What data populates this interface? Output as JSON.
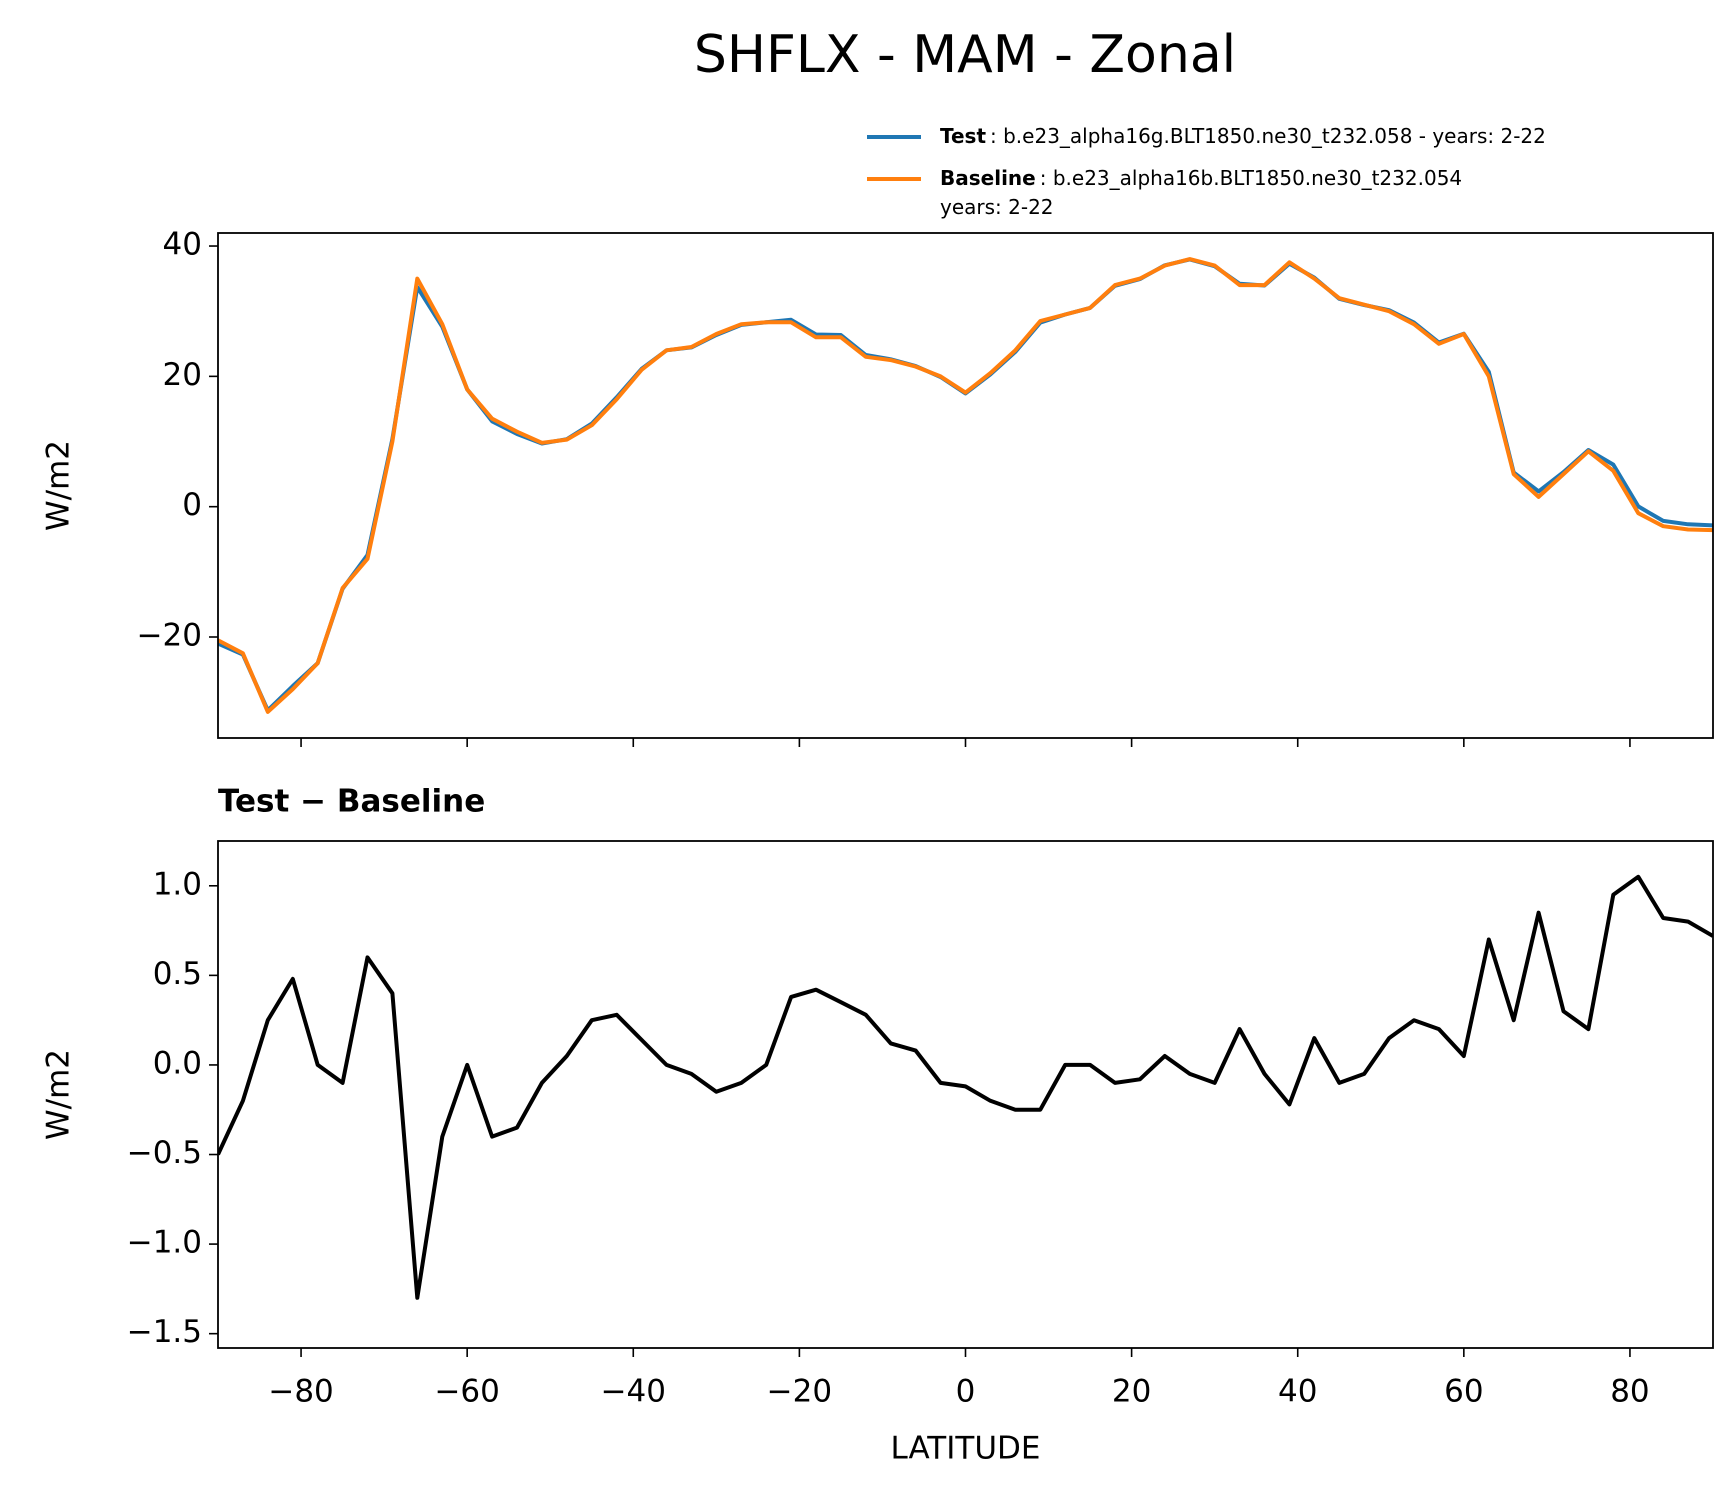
{
  "chart_data": [
    {
      "type": "line",
      "title": "SHFLX - MAM - Zonal",
      "ylabel": "W/m2",
      "x": [
        -90,
        -87,
        -84,
        -81,
        -78,
        -75,
        -72,
        -69,
        -66,
        -63,
        -60,
        -57,
        -54,
        -51,
        -48,
        -45,
        -42,
        -39,
        -36,
        -33,
        -30,
        -27,
        -24,
        -21,
        -18,
        -15,
        -12,
        -9,
        -6,
        -3,
        0,
        3,
        6,
        9,
        12,
        15,
        18,
        21,
        24,
        27,
        30,
        33,
        36,
        39,
        42,
        45,
        48,
        51,
        54,
        57,
        60,
        63,
        66,
        69,
        72,
        75,
        78,
        81,
        84,
        87,
        90
      ],
      "series": [
        {
          "name": "Test",
          "description": [
            ": b.e23_alpha16g.BLT1850.ne30_t232.058 - years: 2-22"
          ],
          "color": "#1f77b4",
          "values": [
            -21,
            -22.7,
            -31.25,
            -27.52,
            -24,
            -12.6,
            -7.4,
            10.4,
            33.7,
            27.6,
            18,
            13.1,
            11.15,
            9.7,
            10.35,
            12.75,
            16.78,
            21.14,
            24,
            24.45,
            26.35,
            27.9,
            28.3,
            28.68,
            26.42,
            26.35,
            23.28,
            22.62,
            21.58,
            19.9,
            17.38,
            20.3,
            23.75,
            28.25,
            29.5,
            30.5,
            33.9,
            34.92,
            37.05,
            37.95,
            36.9,
            34.2,
            33.95,
            37.28,
            35.15,
            31.9,
            30.95,
            30.15,
            28.25,
            25.2,
            26.55,
            20.7,
            5.25,
            2.35,
            5.3,
            8.7,
            6.45,
            0.05,
            -2.18,
            -2.7,
            -2.88
          ]
        },
        {
          "name": "Baseline",
          "description": [
            ": b.e23_alpha16b.BLT1850.ne30_t232.054",
            "years: 2-22"
          ],
          "color": "#ff7f0e",
          "values": [
            -20.5,
            -22.5,
            -31.5,
            -28,
            -24,
            -12.5,
            -8,
            10,
            35,
            28,
            18,
            13.5,
            11.5,
            9.8,
            10.3,
            12.5,
            16.5,
            21,
            24,
            24.5,
            26.5,
            28,
            28.3,
            28.3,
            26,
            26,
            23,
            22.5,
            21.5,
            20,
            17.5,
            20.5,
            24,
            28.5,
            29.5,
            30.5,
            34,
            35,
            37,
            38,
            37,
            34,
            34,
            37.5,
            35,
            32,
            31,
            30,
            28,
            25,
            26.5,
            20,
            5,
            1.5,
            5,
            8.5,
            5.5,
            -1,
            -3,
            -3.5,
            -3.6
          ]
        }
      ],
      "xlim": [
        -90,
        90
      ],
      "xticks": [
        -80,
        -60,
        -40,
        -20,
        0,
        20,
        40,
        60,
        80
      ],
      "ylim": [
        -35.5,
        42
      ],
      "yticks": [
        {
          "value": -20,
          "label": "−20"
        },
        0,
        20,
        40
      ]
    },
    {
      "type": "line",
      "title": "Test − Baseline",
      "xlabel": "LATITUDE",
      "ylabel": "W/m2",
      "x": [
        -90,
        -87,
        -84,
        -81,
        -78,
        -75,
        -72,
        -69,
        -66,
        -63,
        -60,
        -57,
        -54,
        -51,
        -48,
        -45,
        -42,
        -39,
        -36,
        -33,
        -30,
        -27,
        -24,
        -21,
        -18,
        -15,
        -12,
        -9,
        -6,
        -3,
        0,
        3,
        6,
        9,
        12,
        15,
        18,
        21,
        24,
        27,
        30,
        33,
        36,
        39,
        42,
        45,
        48,
        51,
        54,
        57,
        60,
        63,
        66,
        69,
        72,
        75,
        78,
        81,
        84,
        87,
        90
      ],
      "series": [
        {
          "color": "#000000",
          "values": [
            -0.5,
            -0.2,
            0.25,
            0.48,
            0,
            -0.1,
            0.6,
            0.4,
            -1.3,
            -0.4,
            0,
            -0.4,
            -0.35,
            -0.1,
            0.05,
            0.25,
            0.28,
            0.14,
            0,
            -0.05,
            -0.15,
            -0.1,
            0,
            0.38,
            0.42,
            0.35,
            0.28,
            0.12,
            0.08,
            -0.1,
            -0.12,
            -0.2,
            -0.25,
            -0.25,
            0,
            0,
            -0.1,
            -0.08,
            0.05,
            -0.05,
            -0.1,
            0.2,
            -0.05,
            -0.22,
            0.15,
            -0.1,
            -0.05,
            0.15,
            0.25,
            0.2,
            0.05,
            0.7,
            0.25,
            0.85,
            0.3,
            0.2,
            0.95,
            1.05,
            0.82,
            0.8,
            0.72
          ]
        }
      ],
      "xlim": [
        -90,
        90
      ],
      "xticks": [
        {
          "value": -80,
          "label": "−80"
        },
        {
          "value": -60,
          "label": "−60"
        },
        {
          "value": -40,
          "label": "−40"
        },
        {
          "value": -20,
          "label": "−20"
        },
        0,
        20,
        40,
        60,
        80
      ],
      "ylim": [
        -1.58,
        1.25
      ],
      "yticks": [
        {
          "value": -1.5,
          "label": "−1.5"
        },
        {
          "value": -1,
          "label": "−1.0"
        },
        {
          "value": -0.5,
          "label": "−0.5"
        },
        {
          "value": 0,
          "label": "0.0"
        },
        {
          "value": 0.5,
          "label": "0.5"
        },
        {
          "value": 1,
          "label": "1.0"
        }
      ]
    }
  ]
}
